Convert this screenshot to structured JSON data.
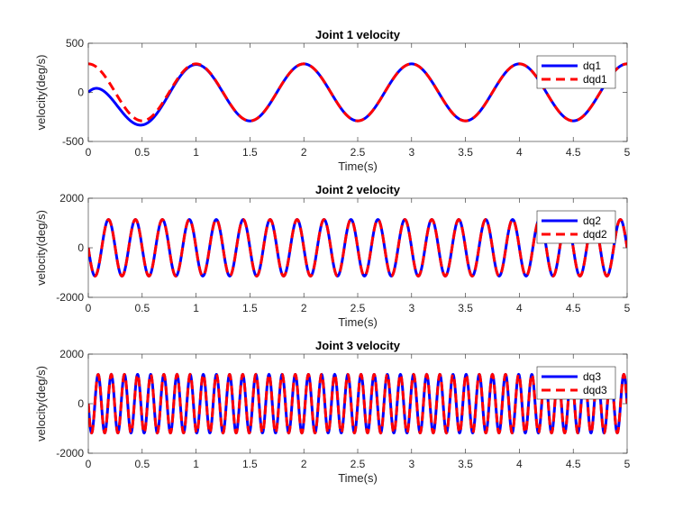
{
  "chart_data": [
    {
      "type": "line",
      "title": "Joint 1 velocity",
      "xlabel": "Time(s)",
      "ylabel": "velocity(deg/s)",
      "xlim": [
        0,
        5
      ],
      "ylim": [
        -500,
        500
      ],
      "xticks": [
        "0",
        "0.5",
        "1",
        "1.5",
        "2",
        "2.5",
        "3",
        "3.5",
        "4",
        "4.5",
        "5"
      ],
      "yticks": [
        "-500",
        "0",
        "500"
      ],
      "legend_position": "top-right",
      "series": [
        {
          "name": "dq1",
          "color": "#0000ff",
          "style": "solid",
          "model": {
            "form": "cosine",
            "amplitude": 290,
            "frequency_hz": 1,
            "initial_value": 0,
            "transient_decay_s": 0.26
          }
        },
        {
          "name": "dqd1",
          "color": "#ff0000",
          "style": "dashed",
          "model": {
            "form": "cosine",
            "amplitude": 290,
            "frequency_hz": 1
          }
        }
      ]
    },
    {
      "type": "line",
      "title": "Joint 2 velocity",
      "xlabel": "Time(s)",
      "ylabel": "velocity(deg/s)",
      "xlim": [
        0,
        5
      ],
      "ylim": [
        -2000,
        2000
      ],
      "xticks": [
        "0",
        "0.5",
        "1",
        "1.5",
        "2",
        "2.5",
        "3",
        "3.5",
        "4",
        "4.5",
        "5"
      ],
      "yticks": [
        "-2000",
        "0",
        "2000"
      ],
      "legend_position": "top-right",
      "series": [
        {
          "name": "dq2",
          "color": "#0000ff",
          "style": "solid",
          "model": {
            "form": "negative-sine",
            "amplitude": 1140,
            "frequency_hz": 4
          }
        },
        {
          "name": "dqd2",
          "color": "#ff0000",
          "style": "dashed",
          "model": {
            "form": "negative-sine",
            "amplitude": 1140,
            "frequency_hz": 4
          }
        }
      ]
    },
    {
      "type": "line",
      "title": "Joint 3 velocity",
      "xlabel": "Time(s)",
      "ylabel": "velocity(deg/s)",
      "xlim": [
        0,
        5
      ],
      "ylim": [
        -2000,
        2000
      ],
      "xticks": [
        "0",
        "0.5",
        "1",
        "1.5",
        "2",
        "2.5",
        "3",
        "3.5",
        "4",
        "4.5",
        "5"
      ],
      "yticks": [
        "-2000",
        "0",
        "2000"
      ],
      "legend_position": "top-right",
      "series": [
        {
          "name": "dq3",
          "color": "#0000ff",
          "style": "solid",
          "model": {
            "form": "negative-sine",
            "amplitude": 1180,
            "frequency_hz": 8.2
          }
        },
        {
          "name": "dqd3",
          "color": "#ff0000",
          "style": "dashed",
          "model": {
            "form": "negative-sine",
            "amplitude": 1180,
            "frequency_hz": 8.2
          }
        }
      ]
    }
  ]
}
